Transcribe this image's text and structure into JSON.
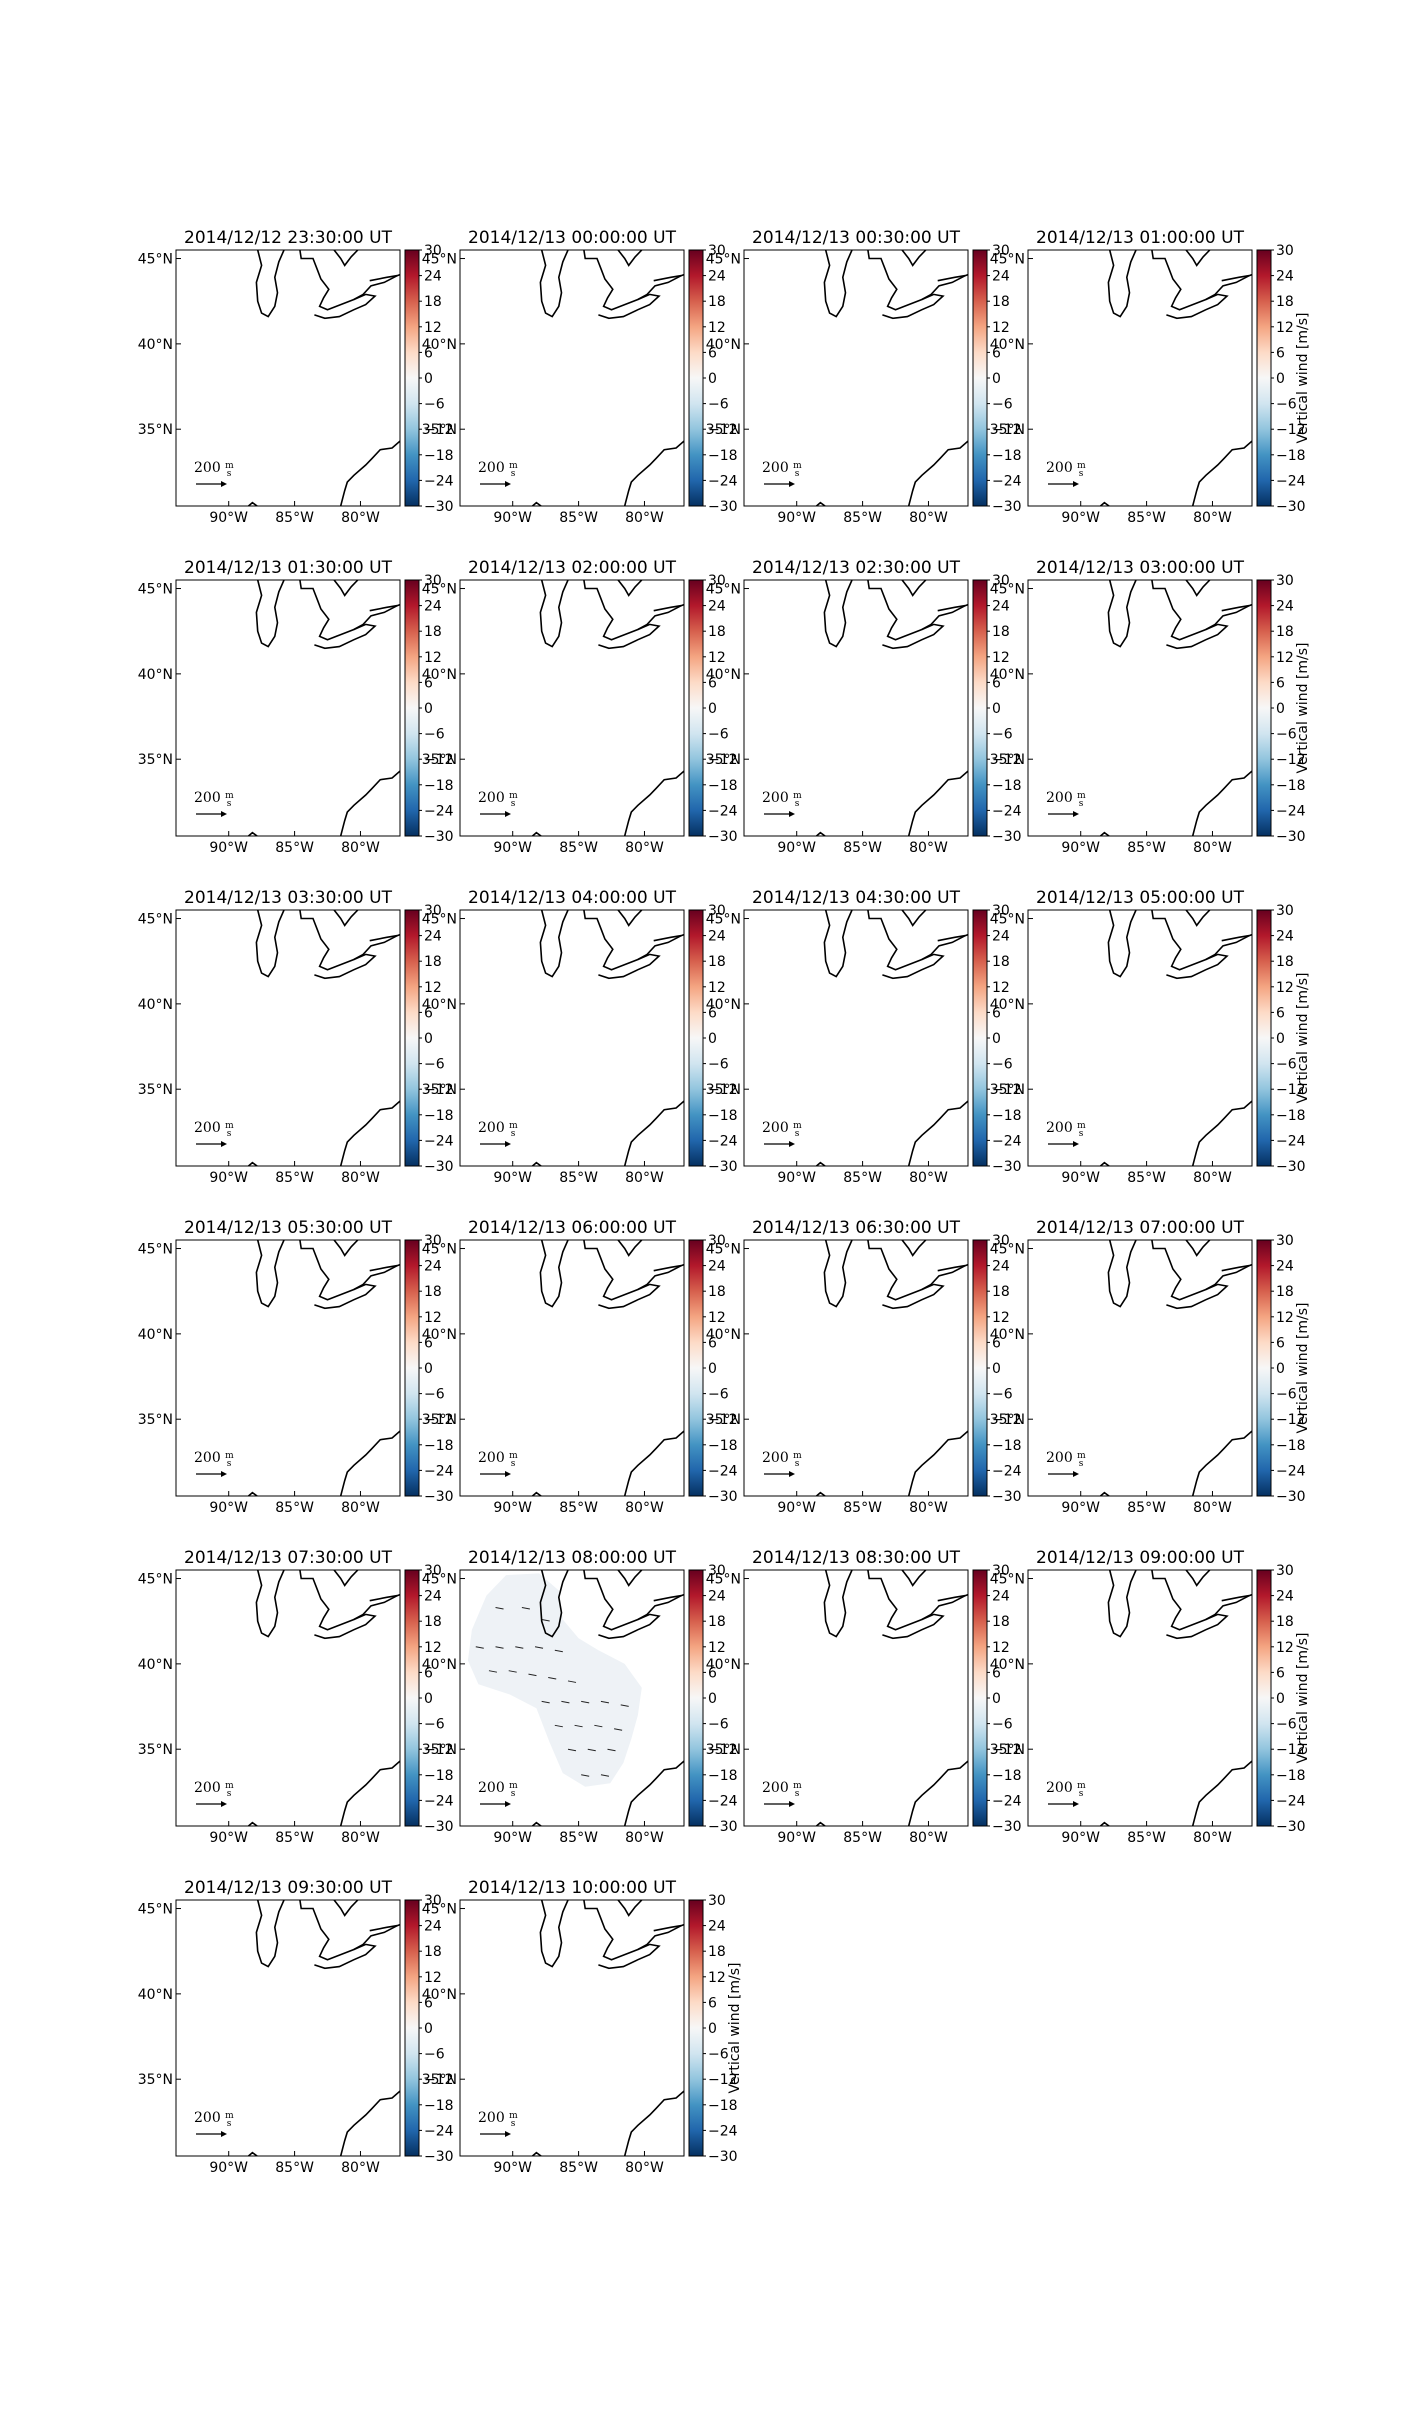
{
  "figure": {
    "colorbar_label": "Vertical wind [m/s]",
    "colorbar_ticks": [
      "30",
      "24",
      "18",
      "12",
      "6",
      "0",
      "−6",
      "−12",
      "−18",
      "−24",
      "−30"
    ],
    "colorbar_range": [
      -30,
      30
    ],
    "colormap": [
      "#053061",
      "#2166ac",
      "#4393c3",
      "#92c5de",
      "#d1e5f0",
      "#f7f7f7",
      "#fddbc7",
      "#f4a582",
      "#d6604d",
      "#b2182b",
      "#67001f"
    ],
    "lon_ticks": [
      "90°W",
      "85°W",
      "80°W"
    ],
    "lat_ticks": [
      "45°N",
      "40°N",
      "35°N"
    ],
    "quiver_key": {
      "value": "200",
      "unit_numerator": "m",
      "unit_denominator": "s"
    },
    "coastline_color": "#000000",
    "field_color_near_zero": "#eef2f6",
    "panels": [
      {
        "title": "2014/12/12 23:30:00 UT",
        "has_data": false
      },
      {
        "title": "2014/12/13 00:00:00 UT",
        "has_data": false
      },
      {
        "title": "2014/12/13 00:30:00 UT",
        "has_data": false
      },
      {
        "title": "2014/12/13 01:00:00 UT",
        "has_data": false
      },
      {
        "title": "2014/12/13 01:30:00 UT",
        "has_data": false
      },
      {
        "title": "2014/12/13 02:00:00 UT",
        "has_data": false
      },
      {
        "title": "2014/12/13 02:30:00 UT",
        "has_data": false
      },
      {
        "title": "2014/12/13 03:00:00 UT",
        "has_data": false
      },
      {
        "title": "2014/12/13 03:30:00 UT",
        "has_data": false
      },
      {
        "title": "2014/12/13 04:00:00 UT",
        "has_data": false
      },
      {
        "title": "2014/12/13 04:30:00 UT",
        "has_data": false
      },
      {
        "title": "2014/12/13 05:00:00 UT",
        "has_data": false
      },
      {
        "title": "2014/12/13 05:30:00 UT",
        "has_data": false
      },
      {
        "title": "2014/12/13 06:00:00 UT",
        "has_data": false
      },
      {
        "title": "2014/12/13 06:30:00 UT",
        "has_data": false
      },
      {
        "title": "2014/12/13 07:00:00 UT",
        "has_data": false
      },
      {
        "title": "2014/12/13 07:30:00 UT",
        "has_data": false
      },
      {
        "title": "2014/12/13 08:00:00 UT",
        "has_data": true
      },
      {
        "title": "2014/12/13 08:30:00 UT",
        "has_data": false
      },
      {
        "title": "2014/12/13 09:00:00 UT",
        "has_data": false
      },
      {
        "title": "2014/12/13 09:30:00 UT",
        "has_data": false
      },
      {
        "title": "2014/12/13 10:00:00 UT",
        "has_data": false
      }
    ]
  }
}
